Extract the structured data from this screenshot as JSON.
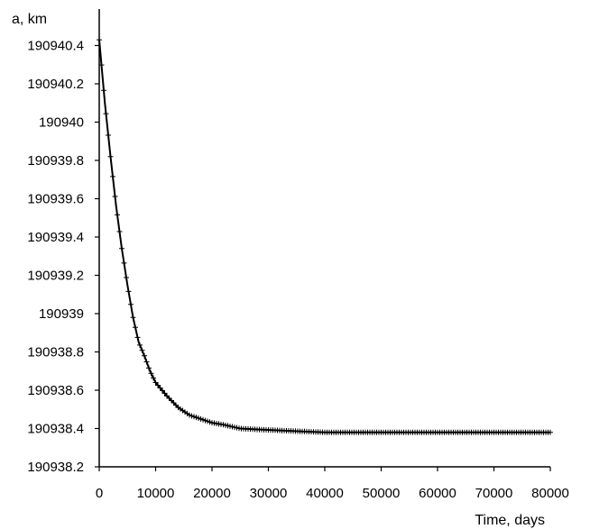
{
  "chart_data": {
    "type": "line",
    "title": "",
    "xlabel": "Time, days",
    "ylabel": "a, km",
    "xlim": [
      0,
      80000
    ],
    "ylim": [
      190938.2,
      190940.45
    ],
    "grid": false,
    "legend": "none",
    "marker": "plus",
    "line_color": "#000000",
    "x_ticks": [
      0,
      10000,
      20000,
      30000,
      40000,
      50000,
      60000,
      70000,
      80000
    ],
    "x_tick_labels": [
      "0",
      "10000",
      "20000",
      "30000",
      "40000",
      "50000",
      "60000",
      "70000",
      "80000"
    ],
    "y_ticks": [
      190938.2,
      190938.4,
      190938.6,
      190938.8,
      190939,
      190939.2,
      190939.4,
      190939.6,
      190939.8,
      190940,
      190940.2,
      190940.4
    ],
    "y_tick_labels": [
      "190938.2",
      "190938.4",
      "190938.6",
      "190938.8",
      "190939",
      "190939.2",
      "190939.4",
      "190939.6",
      "190939.8",
      "190940",
      "190940.2",
      "190940.4"
    ],
    "series": [
      {
        "x": [
          0,
          1000,
          2000,
          3000,
          4000,
          5000,
          6000,
          7000,
          8000,
          9000,
          10000,
          12000,
          14000,
          16000,
          18000,
          20000,
          22000,
          25000,
          28000,
          32000,
          36000,
          40000,
          45000,
          50000,
          55000,
          60000,
          65000,
          70000,
          75000,
          80000
        ],
        "y": [
          190940.43,
          190940.1,
          190939.82,
          190939.56,
          190939.34,
          190939.15,
          190938.98,
          190938.85,
          190938.78,
          190938.7,
          190938.64,
          190938.57,
          190938.51,
          190938.47,
          190938.45,
          190938.43,
          190938.42,
          190938.4,
          190938.395,
          190938.39,
          190938.385,
          190938.38,
          190938.38,
          190938.38,
          190938.38,
          190938.38,
          190938.38,
          190938.38,
          190938.38,
          190938.38
        ]
      }
    ]
  }
}
